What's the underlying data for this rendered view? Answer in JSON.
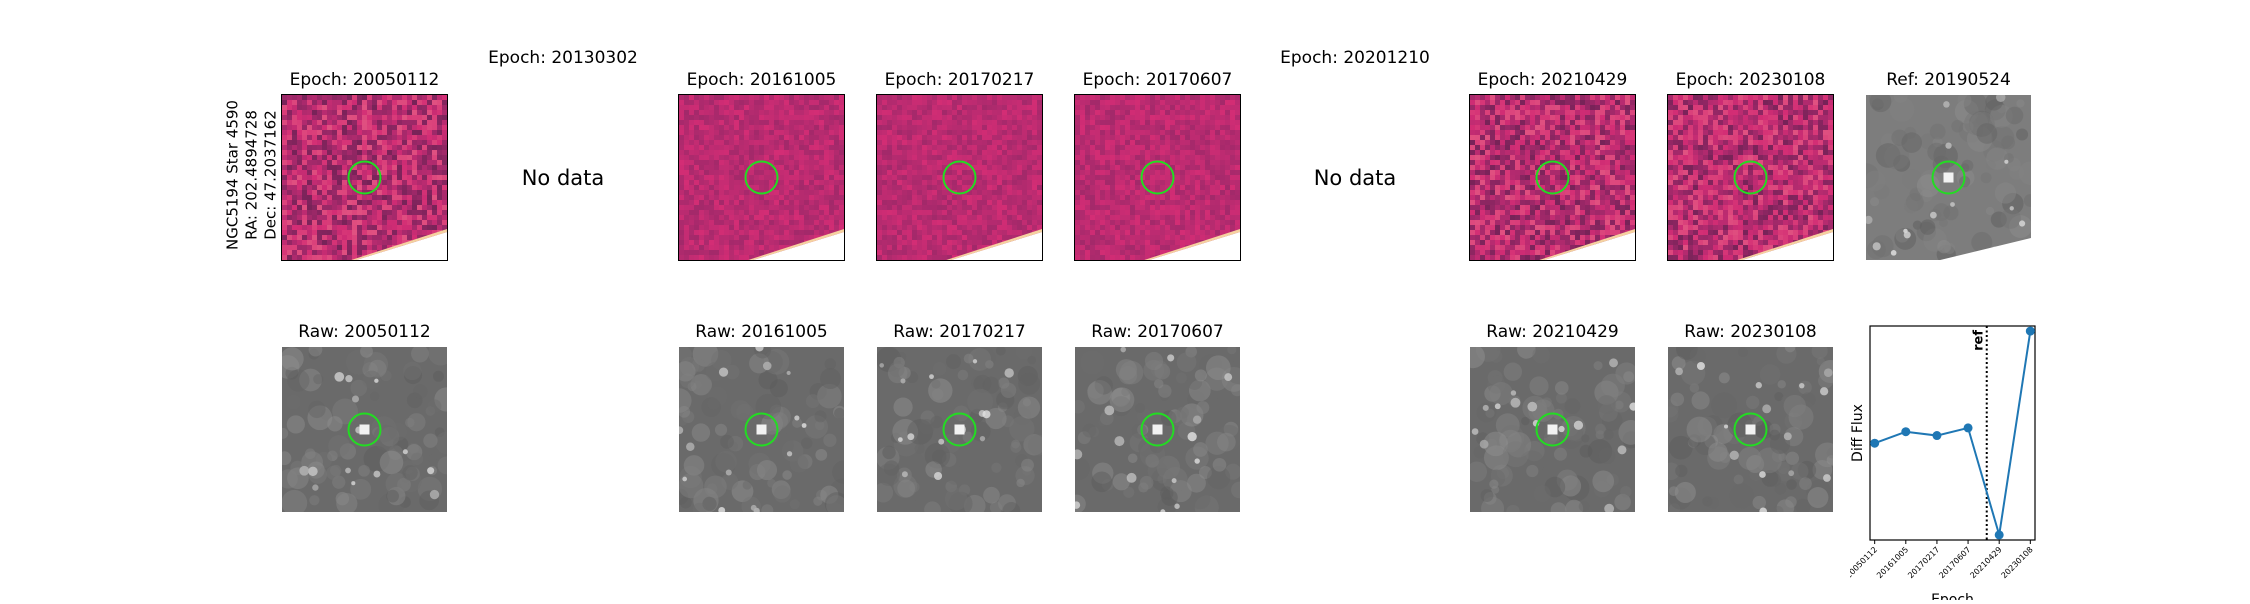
{
  "object_label": [
    "NGC5194 Star 4590",
    "RA: 202.4894728",
    "Dec: 47.2037162"
  ],
  "top_row": [
    {
      "title": "Epoch: 20050112",
      "state": "diff"
    },
    {
      "title": "Epoch: 20130302",
      "state": "nodata",
      "message": "No data"
    },
    {
      "title": "Epoch: 20161005",
      "state": "diff"
    },
    {
      "title": "Epoch: 20170217",
      "state": "diff"
    },
    {
      "title": "Epoch: 20170607",
      "state": "diff"
    },
    {
      "title": "Epoch: 20201210",
      "state": "nodata",
      "message": "No data"
    },
    {
      "title": "Epoch: 20210429",
      "state": "diff"
    },
    {
      "title": "Epoch: 20230108",
      "state": "diff"
    },
    {
      "title": "Ref: 20190524",
      "state": "ref"
    }
  ],
  "bottom_row": [
    {
      "title": "Raw: 20050112"
    },
    {
      "title": "Raw: 20161005"
    },
    {
      "title": "Raw: 20170217"
    },
    {
      "title": "Raw: 20170607"
    },
    {
      "title": "Raw: 20210429"
    },
    {
      "title": "Raw: 20230108"
    }
  ],
  "colors": {
    "diff_bg": "#b8457a",
    "marker_circle": "#22dd22",
    "line": "#1f77b4",
    "raw_bg": "#6a6a6a",
    "ref_bg": "#7d7d7d"
  },
  "chart_data": {
    "type": "line",
    "xlabel": "Epoch",
    "ylabel": "Diff Flux",
    "categories": [
      "20050112",
      "20161005",
      "20170217",
      "20170607",
      "20210429",
      "20230108"
    ],
    "values": [
      0.0,
      0.045,
      0.03,
      0.06,
      -0.36,
      0.44
    ],
    "ylim": [
      -0.38,
      0.46
    ],
    "ref_line": {
      "label": "ref",
      "x": 3.6
    },
    "yticks_shown": false
  }
}
